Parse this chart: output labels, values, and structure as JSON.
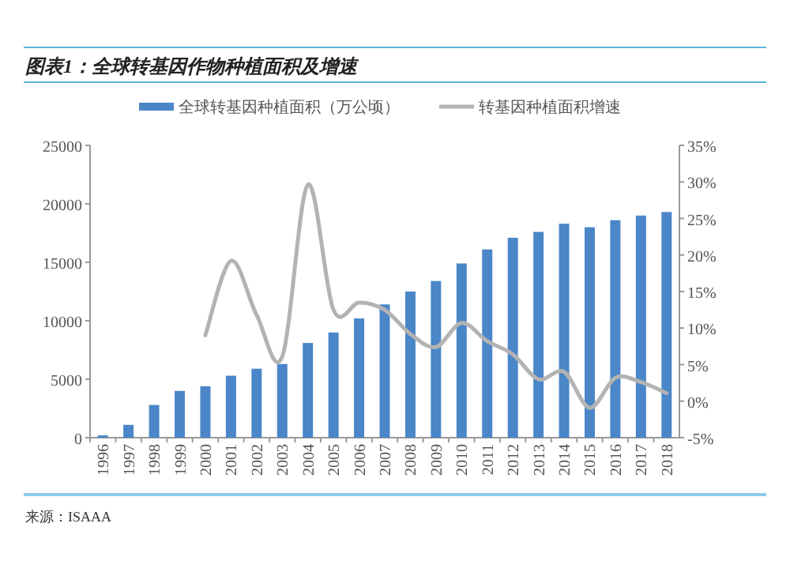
{
  "chart_data": {
    "type": "bar",
    "title": "图表1：全球转基因作物种植面积及增速",
    "categories": [
      "1996",
      "1997",
      "1998",
      "1999",
      "2000",
      "2001",
      "2002",
      "2003",
      "2004",
      "2005",
      "2006",
      "2007",
      "2008",
      "2009",
      "2010",
      "2011",
      "2012",
      "2013",
      "2014",
      "2015",
      "2016",
      "2017",
      "2018"
    ],
    "series": [
      {
        "name": "全球转基因种植面积（万公顷）",
        "color": "#4a86c8",
        "values": [
          200,
          1100,
          2800,
          4000,
          4400,
          5300,
          5900,
          6300,
          8100,
          9000,
          10200,
          11400,
          12500,
          13400,
          14900,
          16100,
          17100,
          17600,
          18300,
          18000,
          18600,
          19000,
          19300
        ]
      },
      {
        "name": "转基因种植面积增速",
        "type": "line",
        "axis": "y2",
        "color": "#b3b3b3",
        "values": [
          null,
          null,
          null,
          null,
          9.0,
          19.2,
          11.8,
          6.1,
          29.6,
          12.5,
          13.5,
          12.5,
          9.2,
          7.4,
          10.7,
          8.2,
          6.4,
          3.0,
          4.0,
          -0.9,
          3.2,
          2.6,
          1.1
        ]
      }
    ],
    "ylim": [
      0,
      25000
    ],
    "yticks": [
      0,
      5000,
      10000,
      15000,
      20000,
      25000
    ],
    "y2lim": [
      -5,
      35
    ],
    "y2ticks": [
      {
        "value": -5,
        "label": "-5%"
      },
      {
        "value": 0,
        "label": "0%"
      },
      {
        "value": 5,
        "label": "5%"
      },
      {
        "value": 10,
        "label": "10%"
      },
      {
        "value": 15,
        "label": "15%"
      },
      {
        "value": 20,
        "label": "20%"
      },
      {
        "value": 25,
        "label": "25%"
      },
      {
        "value": 30,
        "label": "30%"
      },
      {
        "value": 35,
        "label": "35%"
      }
    ],
    "legend": "top",
    "grid": false,
    "annotations": [
      "来源：ISAAA"
    ]
  }
}
